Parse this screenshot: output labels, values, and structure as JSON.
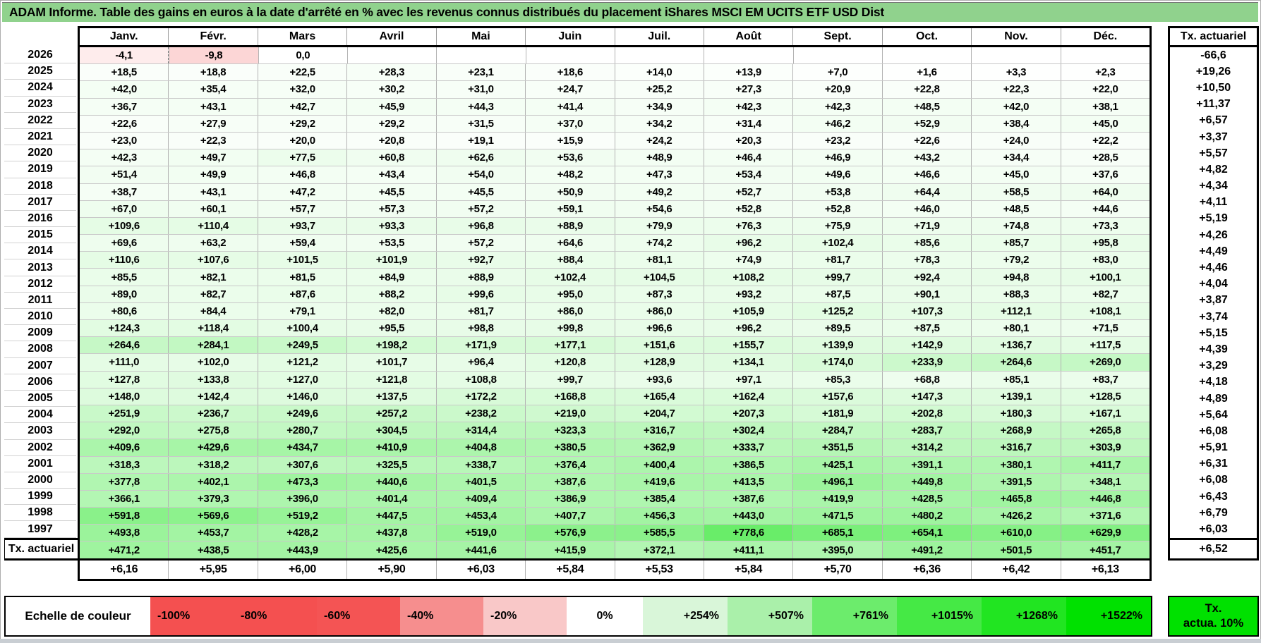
{
  "colors": {
    "title_bar": "#90D28D",
    "negative_strong": "#F44D4D",
    "positive_strong": "#00E100",
    "grid_line": "#B3B3B3",
    "table_border": "#000000"
  },
  "chart_data": {
    "type": "heatmap",
    "title": "ADAM Informe. Table des gains en euros à la date d'arrêté en % avec les revenus connus distribués du placement iShares MSCI EM UCITS ETF USD Dist",
    "columns": [
      "Janv.",
      "Févr.",
      "Mars",
      "Avril",
      "Mai",
      "Juin",
      "Juil.",
      "Août",
      "Sept.",
      "Oct.",
      "Nov.",
      "Déc."
    ],
    "right_column_header": "Tx. actuariel",
    "rows": [
      {
        "year": "2026",
        "values": [
          "-4,1",
          "-9,8",
          "0,0",
          "",
          "",
          "",
          "",
          "",
          "",
          "",
          "",
          ""
        ],
        "tx": "-66,6"
      },
      {
        "year": "2025",
        "values": [
          "+18,5",
          "+18,8",
          "+22,5",
          "+28,3",
          "+23,1",
          "+18,6",
          "+14,0",
          "+13,9",
          "+7,0",
          "+1,6",
          "+3,3",
          "+2,3"
        ],
        "tx": "+19,26"
      },
      {
        "year": "2024",
        "values": [
          "+42,0",
          "+35,4",
          "+32,0",
          "+30,2",
          "+31,0",
          "+24,7",
          "+25,2",
          "+27,3",
          "+20,9",
          "+22,8",
          "+22,3",
          "+22,0"
        ],
        "tx": "+10,50"
      },
      {
        "year": "2023",
        "values": [
          "+36,7",
          "+43,1",
          "+42,7",
          "+45,9",
          "+44,3",
          "+41,4",
          "+34,9",
          "+42,3",
          "+42,3",
          "+48,5",
          "+42,0",
          "+38,1"
        ],
        "tx": "+11,37"
      },
      {
        "year": "2022",
        "values": [
          "+22,6",
          "+27,9",
          "+29,2",
          "+29,2",
          "+31,5",
          "+37,0",
          "+34,2",
          "+31,4",
          "+46,2",
          "+52,9",
          "+38,4",
          "+45,0"
        ],
        "tx": "+6,57"
      },
      {
        "year": "2021",
        "values": [
          "+23,0",
          "+22,3",
          "+20,0",
          "+20,8",
          "+19,1",
          "+15,9",
          "+24,2",
          "+20,3",
          "+23,2",
          "+22,6",
          "+24,0",
          "+22,2"
        ],
        "tx": "+3,37"
      },
      {
        "year": "2020",
        "values": [
          "+42,3",
          "+49,7",
          "+77,5",
          "+60,8",
          "+62,6",
          "+53,6",
          "+48,9",
          "+46,4",
          "+46,9",
          "+43,2",
          "+34,4",
          "+28,5"
        ],
        "tx": "+5,57"
      },
      {
        "year": "2019",
        "values": [
          "+51,4",
          "+49,9",
          "+46,8",
          "+43,4",
          "+54,0",
          "+48,2",
          "+47,3",
          "+53,4",
          "+49,6",
          "+46,6",
          "+45,0",
          "+37,6"
        ],
        "tx": "+4,82"
      },
      {
        "year": "2018",
        "values": [
          "+38,7",
          "+43,1",
          "+47,2",
          "+45,5",
          "+45,5",
          "+50,9",
          "+49,2",
          "+52,7",
          "+53,8",
          "+64,4",
          "+58,5",
          "+64,0"
        ],
        "tx": "+4,34"
      },
      {
        "year": "2017",
        "values": [
          "+67,0",
          "+60,1",
          "+57,7",
          "+57,3",
          "+57,2",
          "+59,1",
          "+54,6",
          "+52,8",
          "+52,8",
          "+46,0",
          "+48,5",
          "+44,6"
        ],
        "tx": "+4,11"
      },
      {
        "year": "2016",
        "values": [
          "+109,6",
          "+110,4",
          "+93,7",
          "+93,3",
          "+96,8",
          "+88,9",
          "+79,9",
          "+76,3",
          "+75,9",
          "+71,9",
          "+74,8",
          "+73,3"
        ],
        "tx": "+5,19"
      },
      {
        "year": "2015",
        "values": [
          "+69,6",
          "+63,2",
          "+59,4",
          "+53,5",
          "+57,2",
          "+64,6",
          "+74,2",
          "+96,2",
          "+102,4",
          "+85,6",
          "+85,7",
          "+95,8"
        ],
        "tx": "+4,26"
      },
      {
        "year": "2014",
        "values": [
          "+110,6",
          "+107,6",
          "+101,5",
          "+101,9",
          "+92,7",
          "+88,4",
          "+81,1",
          "+74,9",
          "+81,7",
          "+78,3",
          "+79,2",
          "+83,0"
        ],
        "tx": "+4,49"
      },
      {
        "year": "2013",
        "values": [
          "+85,5",
          "+82,1",
          "+81,5",
          "+84,9",
          "+88,9",
          "+102,4",
          "+104,5",
          "+108,2",
          "+99,7",
          "+92,4",
          "+94,8",
          "+100,1"
        ],
        "tx": "+4,46"
      },
      {
        "year": "2012",
        "values": [
          "+89,0",
          "+82,7",
          "+87,6",
          "+88,2",
          "+99,6",
          "+95,0",
          "+87,3",
          "+93,2",
          "+87,5",
          "+90,1",
          "+88,3",
          "+82,7"
        ],
        "tx": "+4,04"
      },
      {
        "year": "2011",
        "values": [
          "+80,6",
          "+84,4",
          "+79,1",
          "+82,0",
          "+81,7",
          "+86,0",
          "+86,0",
          "+105,9",
          "+125,2",
          "+107,3",
          "+112,1",
          "+108,1"
        ],
        "tx": "+3,87"
      },
      {
        "year": "2010",
        "values": [
          "+124,3",
          "+118,4",
          "+100,4",
          "+95,5",
          "+98,8",
          "+99,8",
          "+96,6",
          "+96,2",
          "+89,5",
          "+87,5",
          "+80,1",
          "+71,5"
        ],
        "tx": "+3,74"
      },
      {
        "year": "2009",
        "values": [
          "+264,6",
          "+284,1",
          "+249,5",
          "+198,2",
          "+171,9",
          "+177,1",
          "+151,6",
          "+155,7",
          "+139,9",
          "+142,9",
          "+136,7",
          "+117,5"
        ],
        "tx": "+5,15"
      },
      {
        "year": "2008",
        "values": [
          "+111,0",
          "+102,0",
          "+121,2",
          "+101,7",
          "+96,4",
          "+120,8",
          "+128,9",
          "+134,1",
          "+174,0",
          "+233,9",
          "+264,6",
          "+269,0"
        ],
        "tx": "+4,39"
      },
      {
        "year": "2007",
        "values": [
          "+127,8",
          "+133,8",
          "+127,0",
          "+121,8",
          "+108,8",
          "+99,7",
          "+93,6",
          "+97,1",
          "+85,3",
          "+68,8",
          "+85,1",
          "+83,7"
        ],
        "tx": "+3,29"
      },
      {
        "year": "2006",
        "values": [
          "+148,0",
          "+142,4",
          "+146,0",
          "+137,5",
          "+172,2",
          "+168,8",
          "+165,4",
          "+162,4",
          "+157,6",
          "+147,3",
          "+139,1",
          "+128,5"
        ],
        "tx": "+4,18"
      },
      {
        "year": "2005",
        "values": [
          "+251,9",
          "+236,7",
          "+249,6",
          "+257,2",
          "+238,2",
          "+219,0",
          "+204,7",
          "+207,3",
          "+181,9",
          "+202,8",
          "+180,3",
          "+167,1"
        ],
        "tx": "+4,89"
      },
      {
        "year": "2004",
        "values": [
          "+292,0",
          "+275,8",
          "+280,7",
          "+304,5",
          "+314,4",
          "+323,3",
          "+316,7",
          "+302,4",
          "+284,7",
          "+283,7",
          "+268,9",
          "+265,8"
        ],
        "tx": "+5,64"
      },
      {
        "year": "2003",
        "values": [
          "+409,6",
          "+429,6",
          "+434,7",
          "+410,9",
          "+404,8",
          "+380,5",
          "+362,9",
          "+333,7",
          "+351,5",
          "+314,2",
          "+316,7",
          "+303,9"
        ],
        "tx": "+6,08"
      },
      {
        "year": "2002",
        "values": [
          "+318,3",
          "+318,2",
          "+307,6",
          "+325,5",
          "+338,7",
          "+376,4",
          "+400,4",
          "+386,5",
          "+425,1",
          "+391,1",
          "+380,1",
          "+411,7"
        ],
        "tx": "+5,91"
      },
      {
        "year": "2001",
        "values": [
          "+377,8",
          "+402,1",
          "+473,3",
          "+440,6",
          "+401,5",
          "+387,6",
          "+419,6",
          "+413,5",
          "+496,1",
          "+449,8",
          "+391,5",
          "+348,1"
        ],
        "tx": "+6,31"
      },
      {
        "year": "2000",
        "values": [
          "+366,1",
          "+379,3",
          "+396,0",
          "+401,4",
          "+409,4",
          "+386,9",
          "+385,4",
          "+387,6",
          "+419,9",
          "+428,5",
          "+465,8",
          "+446,8"
        ],
        "tx": "+6,08"
      },
      {
        "year": "1999",
        "values": [
          "+591,8",
          "+569,6",
          "+519,2",
          "+447,5",
          "+453,4",
          "+407,7",
          "+456,3",
          "+443,0",
          "+471,5",
          "+480,2",
          "+426,2",
          "+371,6"
        ],
        "tx": "+6,43"
      },
      {
        "year": "1998",
        "values": [
          "+493,8",
          "+453,7",
          "+428,2",
          "+437,8",
          "+519,0",
          "+576,9",
          "+585,5",
          "+778,6",
          "+685,1",
          "+654,1",
          "+610,0",
          "+629,9"
        ],
        "tx": "+6,79"
      },
      {
        "year": "1997",
        "values": [
          "+471,2",
          "+438,5",
          "+443,9",
          "+425,6",
          "+441,6",
          "+415,9",
          "+372,1",
          "+411,1",
          "+395,0",
          "+491,2",
          "+501,5",
          "+451,7"
        ],
        "tx": "+6,03"
      }
    ],
    "footer": {
      "label": "Tx. actuariel",
      "values": [
        "+6,16",
        "+5,95",
        "+6,00",
        "+5,90",
        "+6,03",
        "+5,84",
        "+5,53",
        "+5,84",
        "+5,70",
        "+6,36",
        "+6,42",
        "+6,13"
      ],
      "tx": "+6,52"
    },
    "color_scale": {
      "label": "Echelle de couleur",
      "cells": [
        {
          "text": "-100%",
          "color": "#F45050",
          "align": "left"
        },
        {
          "text": "-80%",
          "color": "#F45050",
          "align": "left"
        },
        {
          "text": "-60%",
          "color": "#F45454",
          "align": "left"
        },
        {
          "text": "-40%",
          "color": "#F68E8E",
          "align": "left"
        },
        {
          "text": "-20%",
          "color": "#F9C8C8",
          "align": "left"
        },
        {
          "text": "0%",
          "color": "#FFFFFF",
          "align": "center"
        },
        {
          "text": "+254%",
          "color": "#D9F6D9",
          "align": "right"
        },
        {
          "text": "+507%",
          "color": "#AAF0AA",
          "align": "right"
        },
        {
          "text": "+761%",
          "color": "#6CEC6C",
          "align": "right"
        },
        {
          "text": "+1015%",
          "color": "#45E945",
          "align": "right"
        },
        {
          "text": "+1268%",
          "color": "#21E521",
          "align": "right"
        },
        {
          "text": "+1522%",
          "color": "#00E100",
          "align": "right"
        }
      ],
      "tx_cell": {
        "line1": "Tx.",
        "line2": "actua. 10%",
        "color": "#00E100"
      }
    }
  }
}
